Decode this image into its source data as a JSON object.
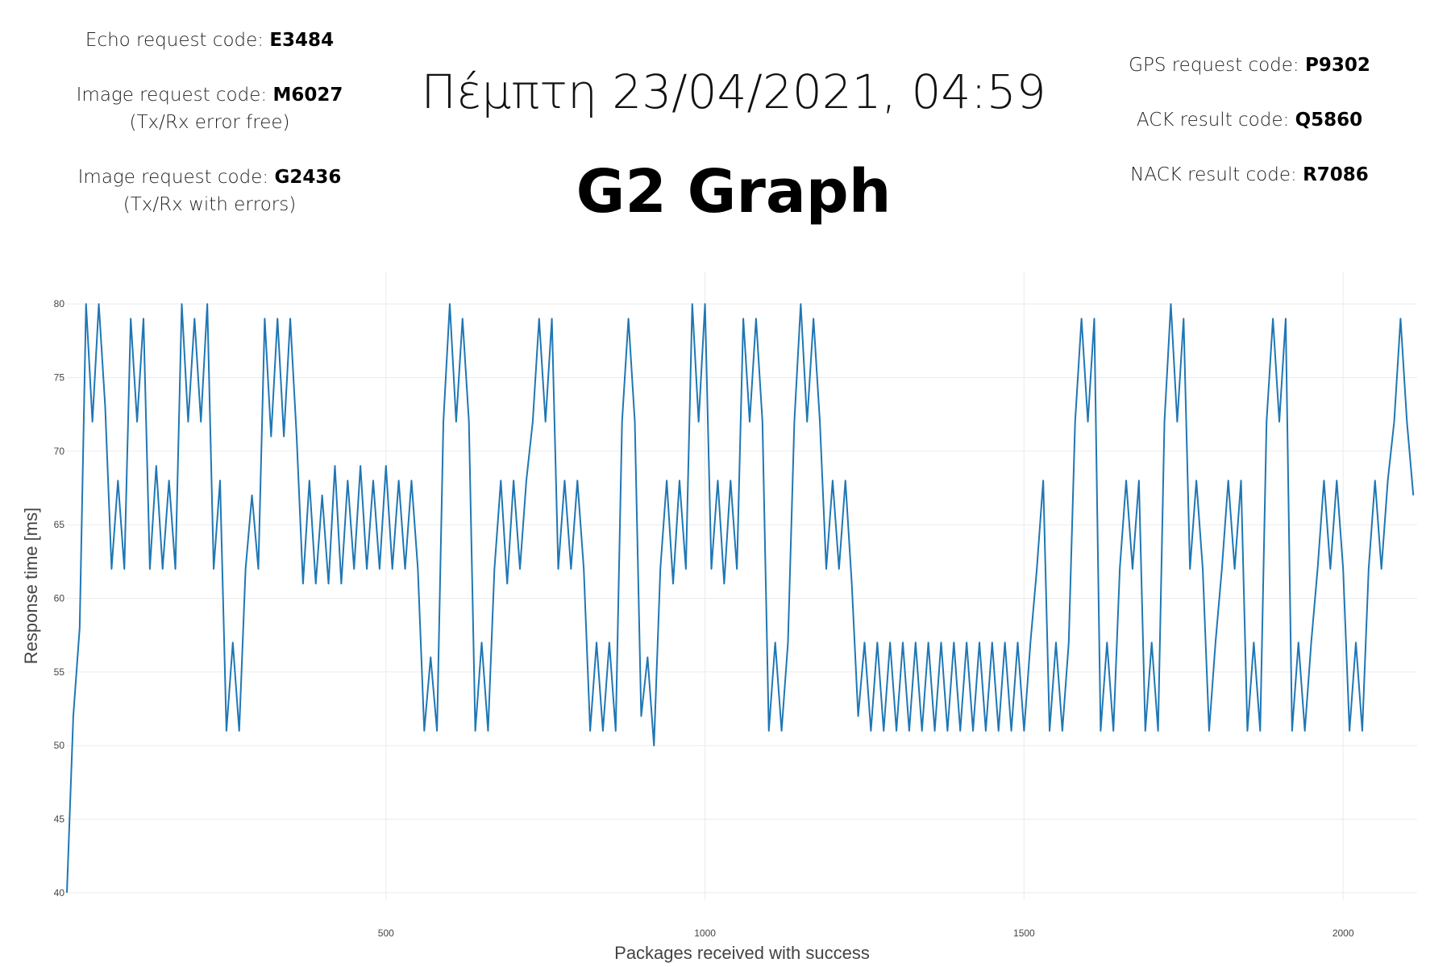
{
  "header": {
    "left": [
      {
        "label": "Echo request code:",
        "code": "E3484"
      },
      {
        "label": "Image request code:",
        "code": "M6027",
        "note": "(Tx/Rx error free)"
      },
      {
        "label": "Image request code:",
        "code": "G2436",
        "note": "(Tx/Rx with errors)"
      }
    ],
    "datetime": "Πέμπτη 23/04/2021, 04:59",
    "title": "G2 Graph",
    "right": [
      {
        "label": "GPS request code:",
        "code": "P9302"
      },
      {
        "label": "ACK result code:",
        "code": "Q5860"
      },
      {
        "label": "NACK result code:",
        "code": "R7086"
      }
    ]
  },
  "chart_data": {
    "type": "line",
    "x_label": "Packages received with success",
    "y_label": "Response time [ms]",
    "color": "#1f77b4",
    "grid": true,
    "xlim": [
      0,
      2116
    ],
    "xticks": [
      500,
      1000,
      1500,
      2000
    ],
    "ylim": [
      39.5,
      82.2
    ],
    "yticks": [
      40,
      45,
      50,
      55,
      60,
      65,
      70,
      75,
      80
    ],
    "x": [
      0,
      10,
      20,
      30,
      40,
      50,
      60,
      70,
      80,
      90,
      100,
      110,
      120,
      130,
      140,
      150,
      160,
      170,
      180,
      190,
      200,
      210,
      220,
      230,
      240,
      250,
      260,
      270,
      280,
      290,
      300,
      310,
      320,
      330,
      340,
      350,
      360,
      370,
      380,
      390,
      400,
      410,
      420,
      430,
      440,
      450,
      460,
      470,
      480,
      490,
      500,
      510,
      520,
      530,
      540,
      550,
      560,
      570,
      580,
      590,
      600,
      610,
      620,
      630,
      640,
      650,
      660,
      670,
      680,
      690,
      700,
      710,
      720,
      730,
      740,
      750,
      760,
      770,
      780,
      790,
      800,
      810,
      820,
      830,
      840,
      850,
      860,
      870,
      880,
      890,
      900,
      910,
      920,
      930,
      940,
      950,
      960,
      970,
      980,
      990,
      1000,
      1010,
      1020,
      1030,
      1040,
      1050,
      1060,
      1070,
      1080,
      1090,
      1100,
      1110,
      1120,
      1130,
      1140,
      1150,
      1160,
      1170,
      1180,
      1190,
      1200,
      1210,
      1220,
      1230,
      1240,
      1250,
      1260,
      1270,
      1280,
      1290,
      1300,
      1310,
      1320,
      1330,
      1340,
      1350,
      1360,
      1370,
      1380,
      1390,
      1400,
      1410,
      1420,
      1430,
      1440,
      1450,
      1460,
      1470,
      1480,
      1490,
      1500,
      1510,
      1520,
      1530,
      1540,
      1550,
      1560,
      1570,
      1580,
      1590,
      1600,
      1610,
      1620,
      1630,
      1640,
      1650,
      1660,
      1670,
      1680,
      1690,
      1700,
      1710,
      1720,
      1730,
      1740,
      1750,
      1760,
      1770,
      1780,
      1790,
      1800,
      1810,
      1820,
      1830,
      1840,
      1850,
      1860,
      1870,
      1880,
      1890,
      1900,
      1910,
      1920,
      1930,
      1940,
      1950,
      1960,
      1970,
      1980,
      1990,
      2000,
      2010,
      2020,
      2030,
      2040,
      2050,
      2060,
      2070,
      2080,
      2090,
      2100,
      2110
    ],
    "values": [
      40,
      52,
      58,
      80,
      72,
      80,
      73,
      62,
      68,
      62,
      79,
      72,
      79,
      62,
      69,
      62,
      68,
      62,
      80,
      72,
      79,
      72,
      80,
      62,
      68,
      51,
      57,
      51,
      62,
      67,
      62,
      79,
      71,
      79,
      71,
      79,
      71,
      61,
      68,
      61,
      67,
      61,
      69,
      61,
      68,
      62,
      69,
      62,
      68,
      62,
      69,
      62,
      68,
      62,
      68,
      62,
      51,
      56,
      51,
      72,
      80,
      72,
      79,
      72,
      51,
      57,
      51,
      62,
      68,
      61,
      68,
      62,
      68,
      72,
      79,
      72,
      79,
      62,
      68,
      62,
      68,
      62,
      51,
      57,
      51,
      57,
      51,
      72,
      79,
      72,
      52,
      56,
      50,
      62,
      68,
      61,
      68,
      62,
      80,
      72,
      80,
      62,
      68,
      61,
      68,
      62,
      79,
      72,
      79,
      72,
      51,
      57,
      51,
      57,
      72,
      80,
      72,
      79,
      72,
      62,
      68,
      62,
      68,
      61,
      52,
      57,
      51,
      57,
      51,
      57,
      51,
      57,
      51,
      57,
      51,
      57,
      51,
      57,
      51,
      57,
      51,
      57,
      51,
      57,
      51,
      57,
      51,
      57,
      51,
      57,
      51,
      57,
      62,
      68,
      51,
      57,
      51,
      57,
      72,
      79,
      72,
      79,
      51,
      57,
      51,
      62,
      68,
      62,
      68,
      51,
      57,
      51,
      72,
      80,
      72,
      79,
      62,
      68,
      62,
      51,
      57,
      62,
      68,
      62,
      68,
      51,
      57,
      51,
      72,
      79,
      72,
      79,
      51,
      57,
      51,
      57,
      62,
      68,
      62,
      68,
      62,
      51,
      57,
      51,
      62,
      68,
      62,
      68,
      72,
      79,
      72,
      67
    ]
  }
}
